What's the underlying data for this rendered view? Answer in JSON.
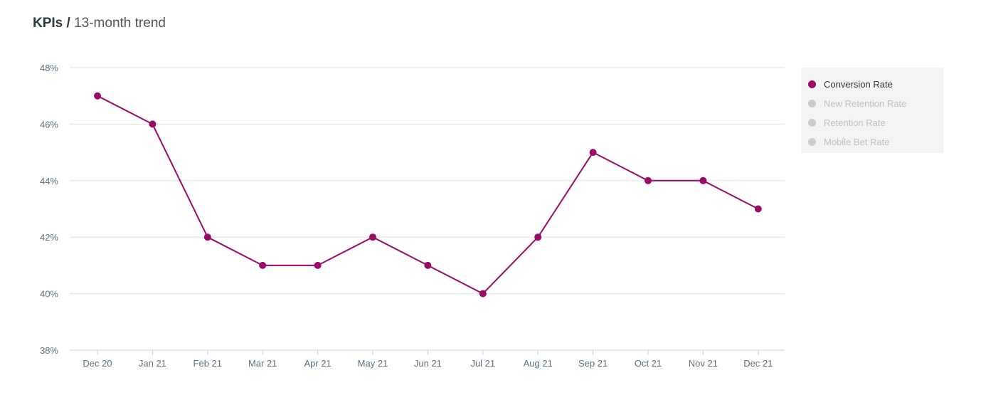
{
  "header": {
    "title_bold": "KPIs /",
    "title_rest": "13-month trend"
  },
  "colors": {
    "active_series": "#9b0a66",
    "inactive_series": "#cccccc",
    "inactive_text": "#bfbfbf",
    "active_text": "#333333",
    "grid": "#e0e0e0",
    "axis": "#c5d5dd"
  },
  "chart_data": {
    "type": "line",
    "categories": [
      "Dec 20",
      "Jan 21",
      "Feb 21",
      "Mar 21",
      "Apr 21",
      "May 21",
      "Jun 21",
      "Jul 21",
      "Aug 21",
      "Sep 21",
      "Oct 21",
      "Nov 21",
      "Dec 21"
    ],
    "yticks": [
      "48%",
      "46%",
      "44%",
      "42%",
      "40%",
      "38%"
    ],
    "ytick_values": [
      48,
      46,
      44,
      42,
      40,
      38
    ],
    "ylim": [
      38,
      48
    ],
    "grid": true,
    "legend_position": "right",
    "series": [
      {
        "name": "Conversion Rate",
        "values": [
          47,
          46,
          42,
          41,
          41,
          42,
          41,
          40,
          42,
          45,
          44,
          44,
          43
        ],
        "visible": true
      },
      {
        "name": "New Retention Rate",
        "values": null,
        "visible": false
      },
      {
        "name": "Retention Rate",
        "values": null,
        "visible": false
      },
      {
        "name": "Mobile Bet Rate",
        "values": null,
        "visible": false
      }
    ]
  }
}
